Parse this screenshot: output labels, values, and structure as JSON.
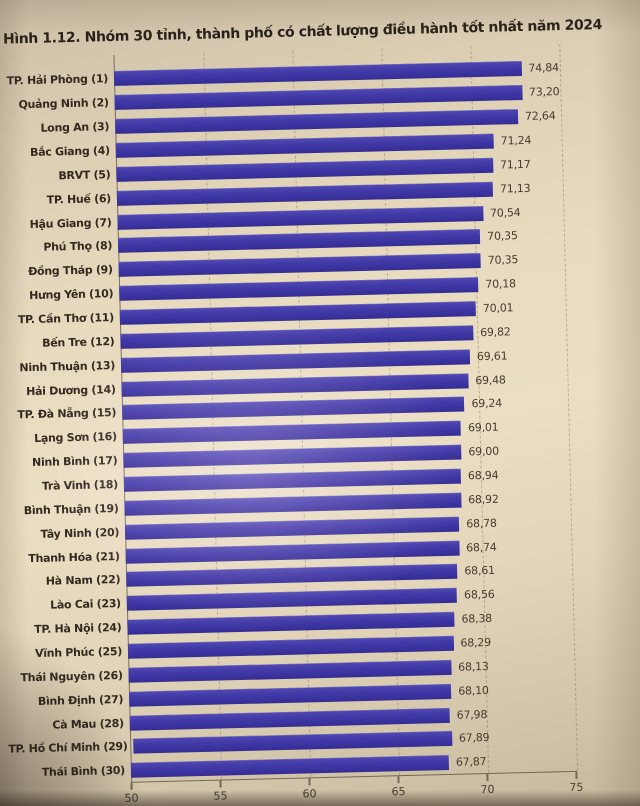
{
  "chart_data": {
    "type": "bar",
    "orientation": "horizontal",
    "title": "Hình 1.12. Nhóm 30 tỉnh, thành phố có chất lượng điều hành tốt nhất năm 2024",
    "categories": [
      "TP. Hải Phòng (1)",
      "Quảng Ninh (2)",
      "Long An (3)",
      "Bắc Giang (4)",
      "BRVT (5)",
      "TP. Huế (6)",
      "Hậu Giang (7)",
      "Phú Thọ (8)",
      "Đồng Tháp (9)",
      "Hưng Yên (10)",
      "TP. Cần Thơ (11)",
      "Bến Tre (12)",
      "Ninh Thuận (13)",
      "Hải Dương (14)",
      "TP. Đà Nẵng (15)",
      "Lạng Sơn (16)",
      "Ninh Bình (17)",
      "Trà Vinh (18)",
      "Bình Thuận (19)",
      "Tây Ninh (20)",
      "Thanh Hóa (21)",
      "Hà Nam (22)",
      "Lào Cai (23)",
      "TP. Hà Nội (24)",
      "Vĩnh Phúc (25)",
      "Thái Nguyên (26)",
      "Bình Định (27)",
      "Cà Mau (28)",
      "TP. Hồ Chí Minh (29)",
      "Thái Bình (30)"
    ],
    "values": [
      74.84,
      73.2,
      72.64,
      71.24,
      71.17,
      71.13,
      70.54,
      70.35,
      70.35,
      70.18,
      70.01,
      69.82,
      69.61,
      69.48,
      69.24,
      69.01,
      69.0,
      68.94,
      68.92,
      68.78,
      68.74,
      68.61,
      68.56,
      68.38,
      68.29,
      68.13,
      68.1,
      67.98,
      67.89,
      67.87
    ],
    "value_labels": [
      "74,84",
      "73,20",
      "72,64",
      "71,24",
      "71,17",
      "71,13",
      "70,54",
      "70,35",
      "70,35",
      "70,18",
      "70,01",
      "69,82",
      "69,61",
      "69,48",
      "69,24",
      "69,01",
      "69,00",
      "68,94",
      "68,92",
      "68,78",
      "68,74",
      "68,61",
      "68,56",
      "68,38",
      "68,29",
      "68,13",
      "68,10",
      "67,98",
      "67,89",
      "67,87"
    ],
    "xlabel": "",
    "ylabel": "",
    "xlim": [
      50,
      75
    ],
    "x_ticks": [
      "50",
      "55",
      "60",
      "65",
      "70",
      "75"
    ],
    "grid": "dashed-vertical",
    "legend": null,
    "bar_color": "#423aa5"
  }
}
